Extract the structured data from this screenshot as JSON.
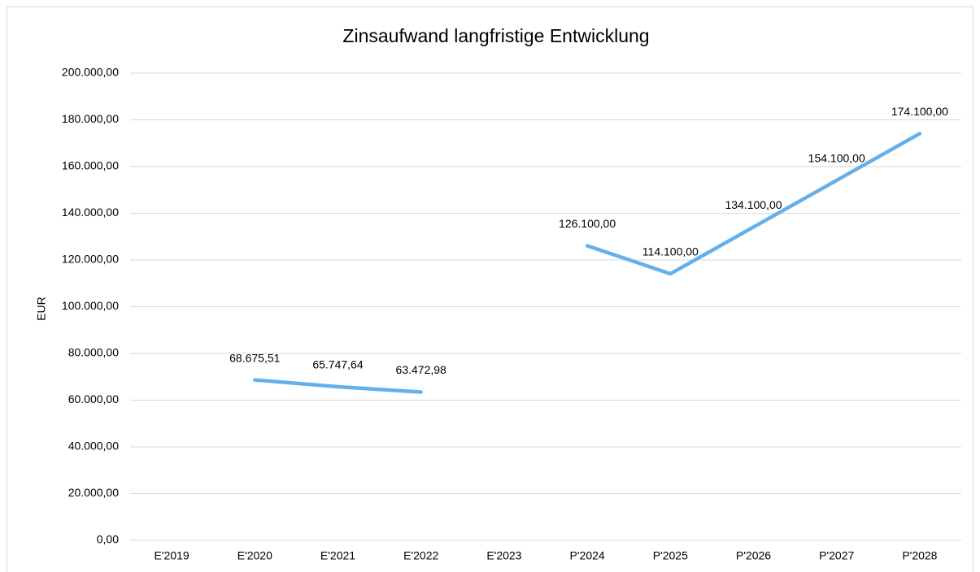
{
  "chart_data": {
    "type": "line",
    "title": "Zinsaufwand langfristige Entwicklung",
    "y_label": "EUR",
    "categories": [
      "E'2019",
      "E'2020",
      "E'2021",
      "E'2022",
      "E'2023",
      "P'2024",
      "P'2025",
      "P'2026",
      "P'2027",
      "P'2028"
    ],
    "series": [
      {
        "name": "Zinsaufwand",
        "color": "#63b0ec",
        "values": [
          null,
          68675.51,
          65747.64,
          63472.98,
          null,
          126100,
          114100,
          134100,
          154100,
          174100
        ],
        "value_labels": [
          null,
          "68.675,51",
          "65.747,64",
          "63.472,98",
          null,
          "126.100,00",
          "114.100,00",
          "134.100,00",
          "154.100,00",
          "174.100,00"
        ]
      }
    ],
    "ylim": [
      0,
      200000
    ],
    "yticks": [
      {
        "value": 0,
        "label": "0,00"
      },
      {
        "value": 20000,
        "label": "20.000,00"
      },
      {
        "value": 40000,
        "label": "40.000,00"
      },
      {
        "value": 60000,
        "label": "60.000,00"
      },
      {
        "value": 80000,
        "label": "80.000,00"
      },
      {
        "value": 100000,
        "label": "100.000,00"
      },
      {
        "value": 120000,
        "label": "120.000,00"
      },
      {
        "value": 140000,
        "label": "140.000,00"
      },
      {
        "value": 160000,
        "label": "160.000,00"
      },
      {
        "value": 180000,
        "label": "180.000,00"
      },
      {
        "value": 200000,
        "label": "200.000,00"
      }
    ],
    "grid": true
  }
}
